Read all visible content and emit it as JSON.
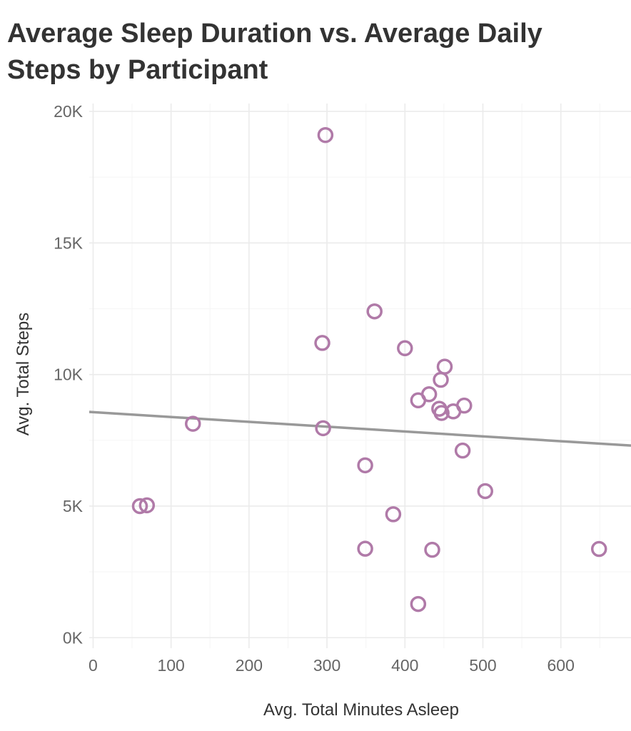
{
  "chart_data": {
    "type": "scatter",
    "title": "Average Sleep Duration vs. Average Daily Steps by Participant",
    "xlabel": "Avg. Total Minutes Asleep",
    "ylabel": "Avg. Total Steps",
    "xlim": [
      -5,
      690
    ],
    "ylim": [
      -400,
      20300
    ],
    "xticks": [
      {
        "value": 0,
        "label": "0"
      },
      {
        "value": 100,
        "label": "100"
      },
      {
        "value": 200,
        "label": "200"
      },
      {
        "value": 300,
        "label": "300"
      },
      {
        "value": 400,
        "label": "400"
      },
      {
        "value": 500,
        "label": "500"
      },
      {
        "value": 600,
        "label": "600"
      }
    ],
    "yticks": [
      {
        "value": 0,
        "label": "0K"
      },
      {
        "value": 5000,
        "label": "5K"
      },
      {
        "value": 10000,
        "label": "10K"
      },
      {
        "value": 15000,
        "label": "15K"
      },
      {
        "value": 20000,
        "label": "20K"
      }
    ],
    "grid": true,
    "point_color": "#b07aa8",
    "trend_color": "#999999",
    "points": [
      {
        "x": 60,
        "y": 5000
      },
      {
        "x": 69,
        "y": 5030
      },
      {
        "x": 128,
        "y": 8130
      },
      {
        "x": 294,
        "y": 11200
      },
      {
        "x": 295,
        "y": 7960
      },
      {
        "x": 298,
        "y": 19100
      },
      {
        "x": 349,
        "y": 6550
      },
      {
        "x": 349,
        "y": 3380
      },
      {
        "x": 361,
        "y": 12400
      },
      {
        "x": 385,
        "y": 4690
      },
      {
        "x": 400,
        "y": 11000
      },
      {
        "x": 417,
        "y": 9020
      },
      {
        "x": 417,
        "y": 1280
      },
      {
        "x": 431,
        "y": 9250
      },
      {
        "x": 435,
        "y": 3340
      },
      {
        "x": 444,
        "y": 8700
      },
      {
        "x": 446,
        "y": 9800
      },
      {
        "x": 447,
        "y": 8540
      },
      {
        "x": 451,
        "y": 10300
      },
      {
        "x": 462,
        "y": 8600
      },
      {
        "x": 474,
        "y": 7110
      },
      {
        "x": 476,
        "y": 8820
      },
      {
        "x": 503,
        "y": 5570
      },
      {
        "x": 649,
        "y": 3370
      }
    ],
    "trend_line": [
      {
        "x": -5,
        "y": 8580
      },
      {
        "x": 690,
        "y": 7300
      }
    ]
  }
}
